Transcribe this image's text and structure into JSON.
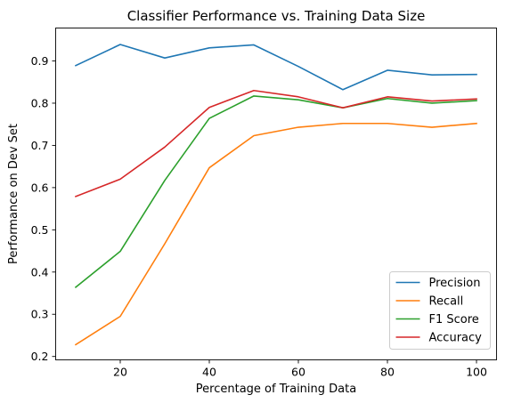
{
  "chart_data": {
    "type": "line",
    "title": "Classifier Performance vs. Training Data Size",
    "xlabel": "Percentage of Training Data",
    "ylabel": "Performance on Dev Set",
    "x": [
      10,
      20,
      30,
      40,
      50,
      60,
      70,
      80,
      90,
      100
    ],
    "xlim": [
      5.5,
      104.5
    ],
    "ylim": [
      0.192,
      0.978
    ],
    "xticks": [
      20,
      40,
      60,
      80,
      100
    ],
    "yticks": [
      0.2,
      0.3,
      0.4,
      0.5,
      0.6,
      0.7,
      0.8,
      0.9
    ],
    "grid": false,
    "legend_position": "lower right",
    "series": [
      {
        "name": "Precision",
        "color": "#1f77b4",
        "values": [
          0.889,
          0.939,
          0.907,
          0.931,
          0.938,
          0.887,
          0.832,
          0.878,
          0.867,
          0.868
        ]
      },
      {
        "name": "Recall",
        "color": "#ff7f0e",
        "values": [
          0.228,
          0.295,
          0.467,
          0.647,
          0.723,
          0.743,
          0.752,
          0.752,
          0.743,
          0.752
        ]
      },
      {
        "name": "F1 Score",
        "color": "#2ca02c",
        "values": [
          0.364,
          0.449,
          0.617,
          0.764,
          0.817,
          0.808,
          0.789,
          0.811,
          0.8,
          0.806
        ]
      },
      {
        "name": "Accuracy",
        "color": "#d62728",
        "values": [
          0.579,
          0.62,
          0.696,
          0.79,
          0.83,
          0.815,
          0.789,
          0.815,
          0.805,
          0.81
        ]
      }
    ]
  }
}
